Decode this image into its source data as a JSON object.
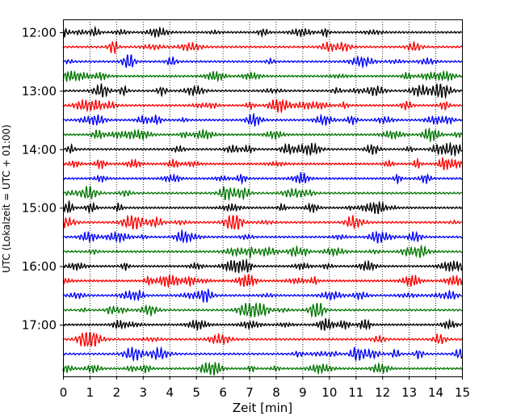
{
  "chart_data": {
    "type": "line",
    "title": "",
    "xlabel": "Zeit  [min]",
    "ylabel": "UTC (Lokalzeit = UTC + 01:00)",
    "xlim": [
      0,
      15
    ],
    "x_ticks": [
      "0",
      "1",
      "2",
      "3",
      "4",
      "5",
      "6",
      "7",
      "8",
      "9",
      "10",
      "11",
      "12",
      "13",
      "14",
      "15"
    ],
    "y_tick_labels": [
      "12:00",
      "13:00",
      "14:00",
      "15:00",
      "16:00",
      "17:00"
    ],
    "trace_start_hour_utc": 12.0,
    "trace_minutes": 15,
    "trace_count": 24,
    "trace_colors": [
      "#000000",
      "#ff0000",
      "#0000ff",
      "#007700"
    ],
    "grid": "vertical dotted lines at each minute"
  }
}
